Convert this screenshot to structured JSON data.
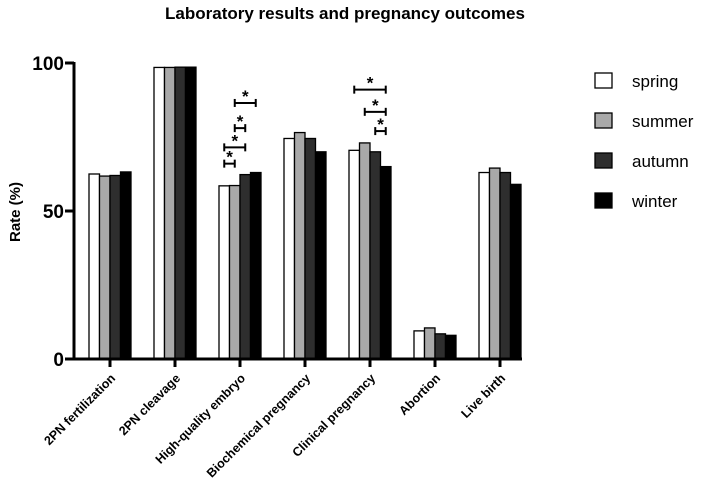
{
  "chart_data": {
    "type": "bar",
    "title": "Laboratory results and pregnancy outcomes",
    "xlabel": "",
    "ylabel": "Rate (%)",
    "ylim": [
      0,
      100
    ],
    "yticks": [
      0,
      50,
      100
    ],
    "categories": [
      "2PN fertilization",
      "2PN cleavage",
      "High-quality embryo",
      "Biochemical pregnancy",
      "Clinical pregnancy",
      "Abortion",
      "Live birth"
    ],
    "series": [
      {
        "name": "spring",
        "color": "#ffffff",
        "values": [
          62.5,
          98.5,
          58.5,
          74.5,
          70.5,
          9.5,
          63.0
        ]
      },
      {
        "name": "summer",
        "color": "#a9a9a9",
        "values": [
          61.8,
          98.5,
          58.6,
          76.5,
          73.0,
          10.5,
          64.5
        ]
      },
      {
        "name": "autumn",
        "color": "#2e2e2e",
        "values": [
          62.0,
          98.6,
          62.3,
          74.5,
          70.0,
          8.5,
          63.0
        ]
      },
      {
        "name": "winter",
        "color": "#000000",
        "values": [
          63.2,
          98.6,
          63.0,
          70.0,
          65.0,
          8.0,
          59.0
        ]
      }
    ],
    "legend_position": "right",
    "grid": false,
    "annotations": [
      {
        "category": 2,
        "from_series": 0,
        "to_series": 1,
        "level": 66.0,
        "label": "*"
      },
      {
        "category": 2,
        "from_series": 0,
        "to_series": 2,
        "level": 71.5,
        "label": "*"
      },
      {
        "category": 2,
        "from_series": 1,
        "to_series": 2,
        "level": 78.0,
        "label": "*"
      },
      {
        "category": 2,
        "from_series": 1,
        "to_series": 3,
        "level": 86.5,
        "label": "*"
      },
      {
        "category": 4,
        "from_series": 2,
        "to_series": 3,
        "level": 77.0,
        "label": "*"
      },
      {
        "category": 4,
        "from_series": 1,
        "to_series": 3,
        "level": 83.5,
        "label": "*"
      },
      {
        "category": 4,
        "from_series": 0,
        "to_series": 3,
        "level": 91.0,
        "label": "*"
      }
    ]
  }
}
